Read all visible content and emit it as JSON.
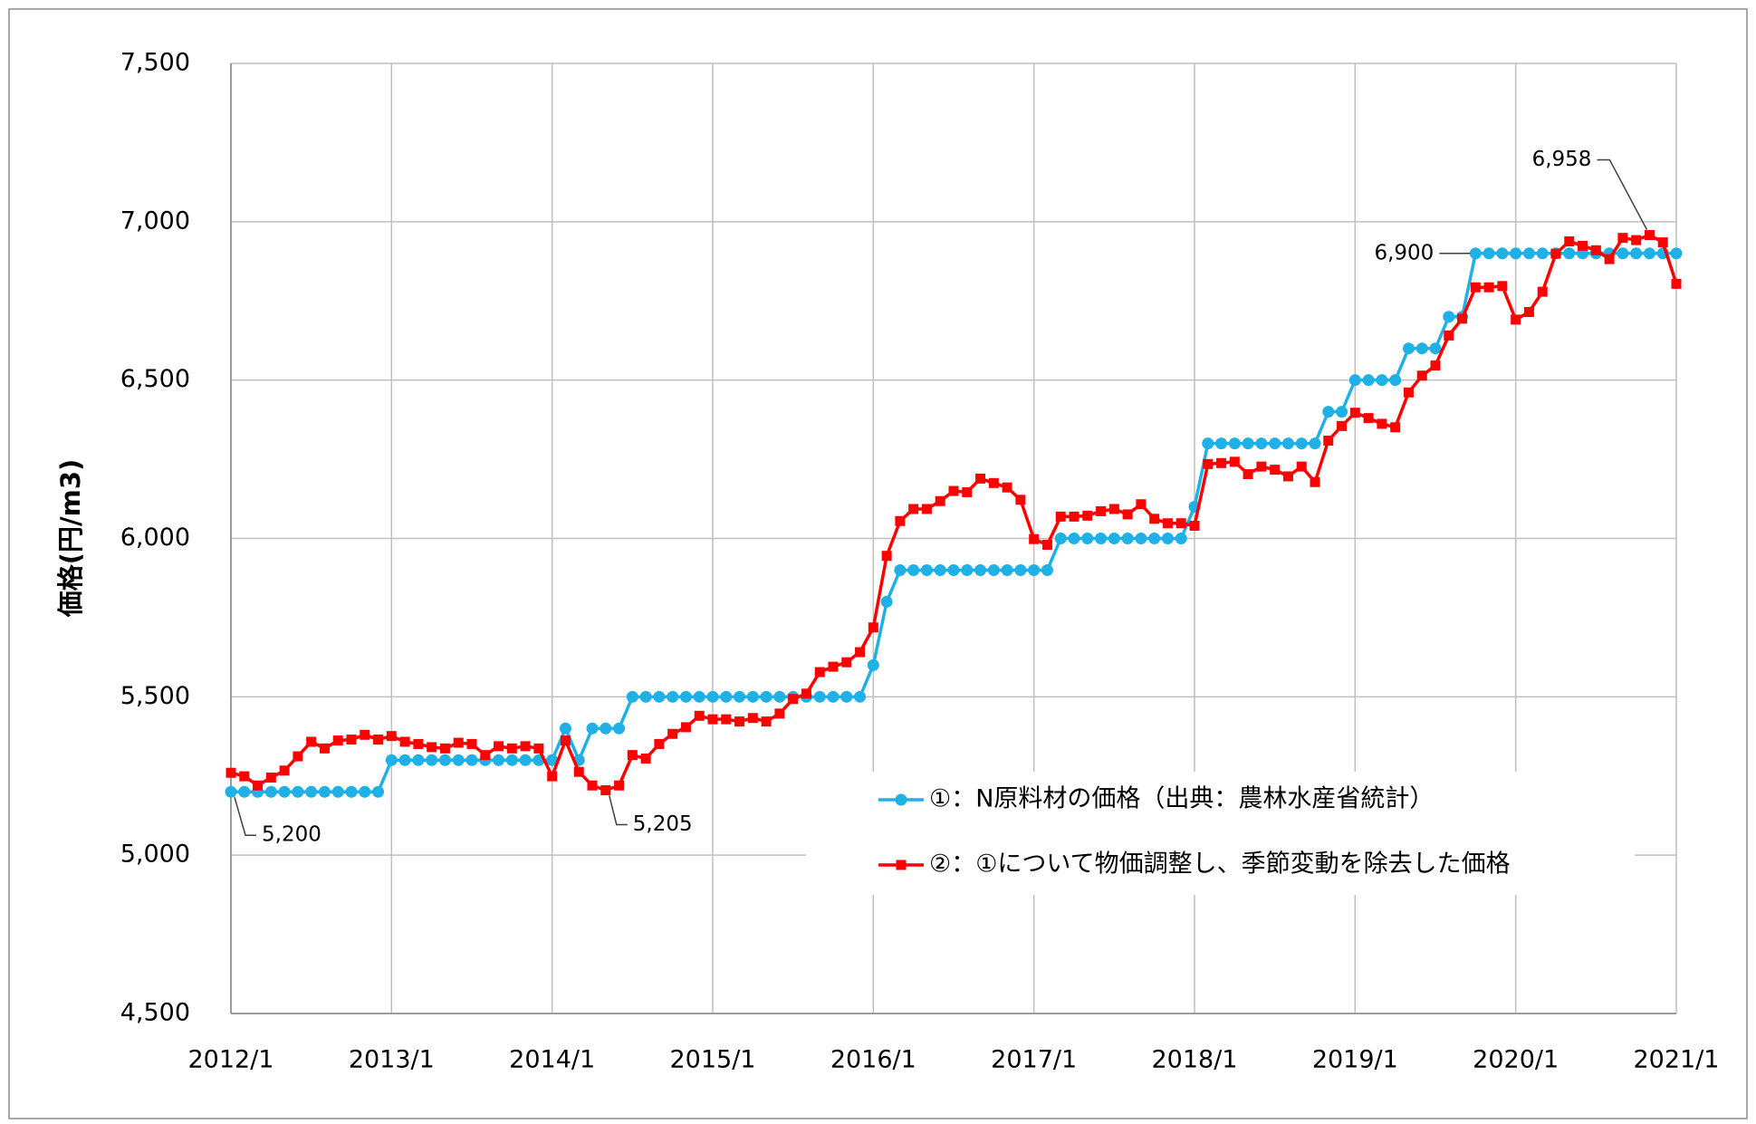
{
  "chart_data": {
    "type": "line",
    "ylabel": "価格(円/m3)",
    "x": [
      "2012/1",
      "2012/2",
      "2012/3",
      "2012/4",
      "2012/5",
      "2012/6",
      "2012/7",
      "2012/8",
      "2012/9",
      "2012/10",
      "2012/11",
      "2012/12",
      "2013/1",
      "2013/2",
      "2013/3",
      "2013/4",
      "2013/5",
      "2013/6",
      "2013/7",
      "2013/8",
      "2013/9",
      "2013/10",
      "2013/11",
      "2013/12",
      "2014/1",
      "2014/2",
      "2014/3",
      "2014/4",
      "2014/5",
      "2014/6",
      "2014/7",
      "2014/8",
      "2014/9",
      "2014/10",
      "2014/11",
      "2014/12",
      "2015/1",
      "2015/2",
      "2015/3",
      "2015/4",
      "2015/5",
      "2015/6",
      "2015/7",
      "2015/8",
      "2015/9",
      "2015/10",
      "2015/11",
      "2015/12",
      "2016/1",
      "2016/2",
      "2016/3",
      "2016/4",
      "2016/5",
      "2016/6",
      "2016/7",
      "2016/8",
      "2016/9",
      "2016/10",
      "2016/11",
      "2016/12",
      "2017/1",
      "2017/2",
      "2017/3",
      "2017/4",
      "2017/5",
      "2017/6",
      "2017/7",
      "2017/8",
      "2017/9",
      "2017/10",
      "2017/11",
      "2017/12",
      "2018/1",
      "2018/2",
      "2018/3",
      "2018/4",
      "2018/5",
      "2018/6",
      "2018/7",
      "2018/8",
      "2018/9",
      "2018/10",
      "2018/11",
      "2018/12",
      "2019/1",
      "2019/2",
      "2019/3",
      "2019/4",
      "2019/5",
      "2019/6",
      "2019/7",
      "2019/8",
      "2019/9",
      "2019/10",
      "2019/11",
      "2019/12",
      "2020/1",
      "2020/2",
      "2020/3",
      "2020/4",
      "2020/5",
      "2020/6",
      "2020/7",
      "2020/8",
      "2020/9",
      "2020/10",
      "2020/11",
      "2020/12",
      "2021/1"
    ],
    "xticks": [
      "2012/1",
      "2013/1",
      "2014/1",
      "2015/1",
      "2016/1",
      "2017/1",
      "2018/1",
      "2019/1",
      "2020/1",
      "2021/1"
    ],
    "ylim": [
      4500,
      7500
    ],
    "yticks": [
      {
        "value": 4500,
        "label": "4,500"
      },
      {
        "value": 5000,
        "label": "5,000"
      },
      {
        "value": 5500,
        "label": "5,500"
      },
      {
        "value": 6000,
        "label": "6,000"
      },
      {
        "value": 6500,
        "label": "6,500"
      },
      {
        "value": 7000,
        "label": "7,000"
      },
      {
        "value": 7500,
        "label": "7,500"
      }
    ],
    "grid": true,
    "legend": "lower right",
    "series": [
      {
        "name": "①：N原料材の価格（出典：農林水産省統計）",
        "color": "#1fb0e6",
        "marker": "circle",
        "values": [
          5200,
          5200,
          5200,
          5200,
          5200,
          5200,
          5200,
          5200,
          5200,
          5200,
          5200,
          5200,
          5300,
          5300,
          5300,
          5300,
          5300,
          5300,
          5300,
          5300,
          5300,
          5300,
          5300,
          5300,
          5300,
          5400,
          5300,
          5400,
          5400,
          5400,
          5500,
          5500,
          5500,
          5500,
          5500,
          5500,
          5500,
          5500,
          5500,
          5500,
          5500,
          5500,
          5500,
          5500,
          5500,
          5500,
          5500,
          5500,
          5600,
          5800,
          5900,
          5900,
          5900,
          5900,
          5900,
          5900,
          5900,
          5900,
          5900,
          5900,
          5900,
          5900,
          6000,
          6000,
          6000,
          6000,
          6000,
          6000,
          6000,
          6000,
          6000,
          6000,
          6100,
          6300,
          6300,
          6300,
          6300,
          6300,
          6300,
          6300,
          6300,
          6300,
          6400,
          6400,
          6500,
          6500,
          6500,
          6500,
          6600,
          6600,
          6600,
          6700,
          6700,
          6900,
          6900,
          6900,
          6900,
          6900,
          6900,
          6900,
          6900,
          6900,
          6900,
          6900,
          6900,
          6900,
          6900,
          6900,
          6900
        ],
        "value_labels": [
          "5,200",
          null,
          null,
          null,
          null,
          null,
          null,
          null,
          null,
          null,
          null,
          null,
          null,
          null,
          null,
          null,
          null,
          null,
          null,
          null,
          null,
          null,
          null,
          null,
          null,
          null,
          null,
          null,
          null,
          null,
          null,
          null,
          null,
          null,
          null,
          null,
          null,
          null,
          null,
          null,
          null,
          null,
          null,
          null,
          null,
          null,
          null,
          null,
          null,
          null,
          null,
          null,
          null,
          null,
          null,
          null,
          null,
          null,
          null,
          null,
          null,
          null,
          null,
          null,
          null,
          null,
          null,
          null,
          null,
          null,
          null,
          null,
          null,
          null,
          null,
          null,
          null,
          null,
          null,
          null,
          null,
          null,
          null,
          null,
          null,
          null,
          null,
          null,
          null,
          null,
          null,
          null,
          null,
          "6,900",
          null,
          null,
          null,
          null,
          null,
          null,
          null,
          null,
          null,
          null,
          null,
          null,
          null,
          null,
          null
        ]
      },
      {
        "name": "②：①について物価調整し、季節変動を除去した価格",
        "color": "#ff0000",
        "marker": "square",
        "values": [
          5260,
          5249,
          5220,
          5245,
          5267,
          5312,
          5358,
          5337,
          5362,
          5365,
          5380,
          5365,
          5376,
          5358,
          5351,
          5341,
          5337,
          5355,
          5351,
          5316,
          5344,
          5337,
          5344,
          5337,
          5249,
          5362,
          5263,
          5220,
          5205,
          5220,
          5316,
          5305,
          5351,
          5383,
          5404,
          5440,
          5429,
          5429,
          5422,
          5433,
          5422,
          5447,
          5493,
          5510,
          5578,
          5595,
          5609,
          5641,
          5719,
          5945,
          6055,
          6093,
          6093,
          6118,
          6150,
          6146,
          6189,
          6175,
          6161,
          6122,
          5998,
          5980,
          6069,
          6069,
          6072,
          6086,
          6093,
          6076,
          6108,
          6062,
          6048,
          6048,
          6040,
          6235,
          6238,
          6242,
          6203,
          6227,
          6217,
          6196,
          6227,
          6178,
          6309,
          6355,
          6397,
          6380,
          6362,
          6351,
          6461,
          6514,
          6546,
          6641,
          6694,
          6793,
          6793,
          6797,
          6691,
          6715,
          6779,
          6899,
          6938,
          6924,
          6910,
          6882,
          6949,
          6942,
          6958,
          6935,
          6804
        ],
        "value_labels": [
          null,
          null,
          null,
          null,
          null,
          null,
          null,
          null,
          null,
          null,
          null,
          null,
          null,
          null,
          null,
          null,
          null,
          null,
          null,
          null,
          null,
          null,
          null,
          null,
          null,
          null,
          null,
          null,
          "5,205",
          null,
          null,
          null,
          null,
          null,
          null,
          null,
          null,
          null,
          null,
          null,
          null,
          null,
          null,
          null,
          null,
          null,
          null,
          null,
          null,
          null,
          null,
          null,
          null,
          null,
          null,
          null,
          null,
          null,
          null,
          null,
          null,
          null,
          null,
          null,
          null,
          null,
          null,
          null,
          null,
          null,
          null,
          null,
          null,
          null,
          null,
          null,
          null,
          null,
          null,
          null,
          null,
          null,
          null,
          null,
          null,
          null,
          null,
          null,
          null,
          null,
          null,
          null,
          null,
          null,
          null,
          null,
          null,
          null,
          null,
          null,
          null,
          null,
          null,
          null,
          null,
          null,
          "6,958",
          null,
          null
        ]
      }
    ]
  }
}
